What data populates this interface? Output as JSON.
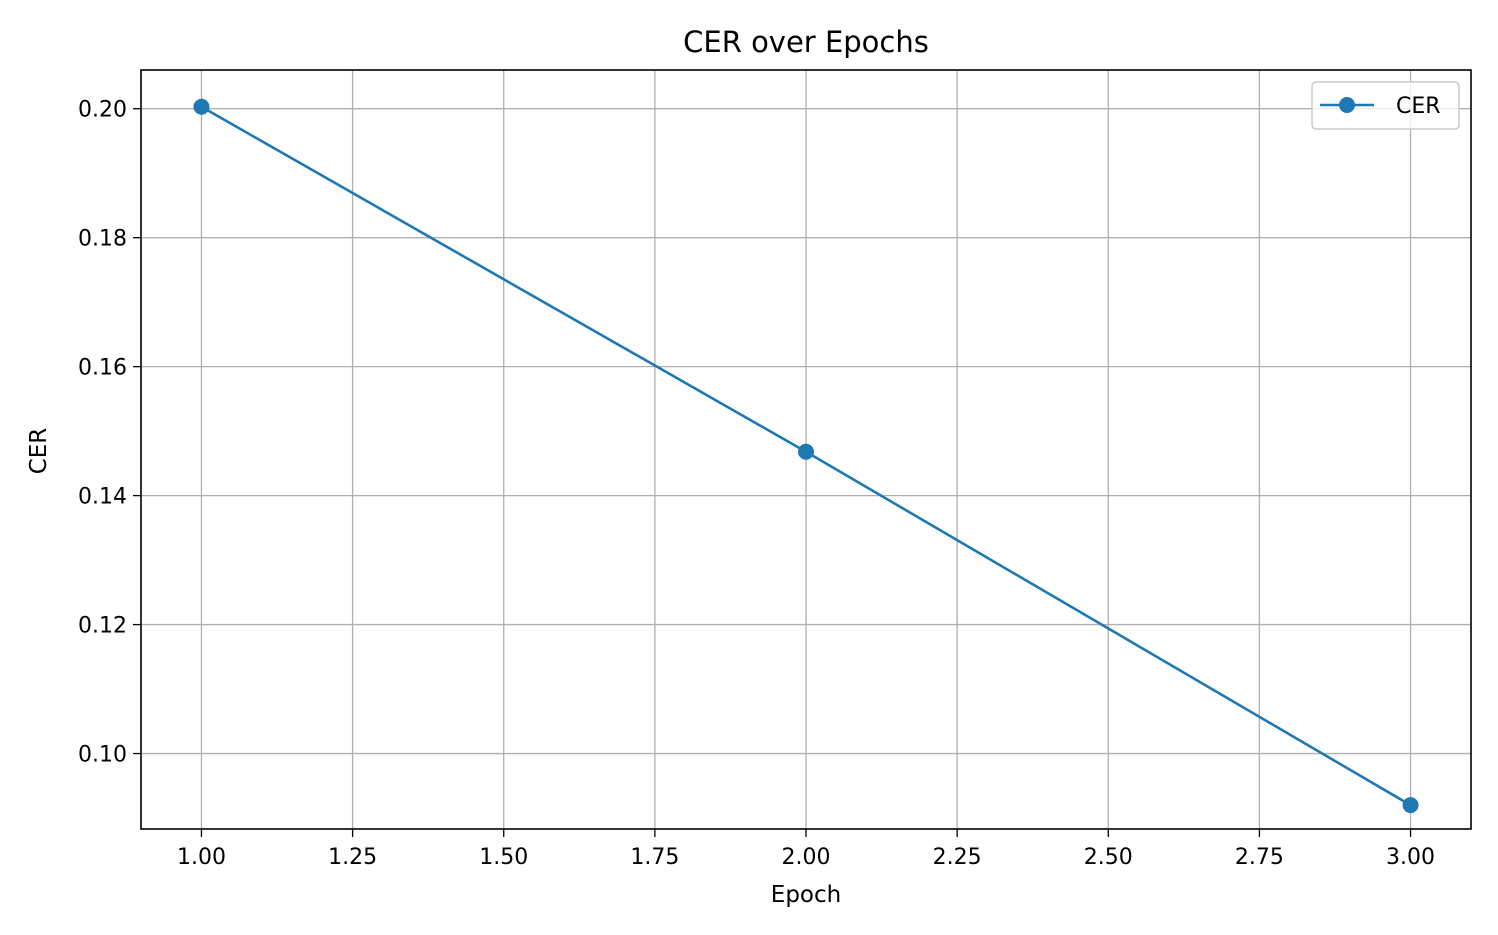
{
  "chart_data": {
    "type": "line",
    "title": "CER over Epochs",
    "xlabel": "Epoch",
    "ylabel": "CER",
    "xlim": [
      0.9,
      3.1
    ],
    "ylim": [
      0.0883,
      0.206
    ],
    "xticks": [
      1.0,
      1.25,
      1.5,
      1.75,
      2.0,
      2.25,
      2.5,
      2.75,
      3.0
    ],
    "xtick_labels": [
      "1.00",
      "1.25",
      "1.50",
      "1.75",
      "2.00",
      "2.25",
      "2.50",
      "2.75",
      "3.00"
    ],
    "yticks": [
      0.1,
      0.12,
      0.14,
      0.16,
      0.18,
      0.2
    ],
    "ytick_labels": [
      "0.10",
      "0.12",
      "0.14",
      "0.16",
      "0.18",
      "0.20"
    ],
    "grid": true,
    "legend_position": "top-right",
    "series": [
      {
        "name": "CER",
        "color": "#1f77b4",
        "marker": "circle",
        "x": [
          1,
          2,
          3
        ],
        "y": [
          0.2003,
          0.1468,
          0.092
        ]
      }
    ]
  }
}
